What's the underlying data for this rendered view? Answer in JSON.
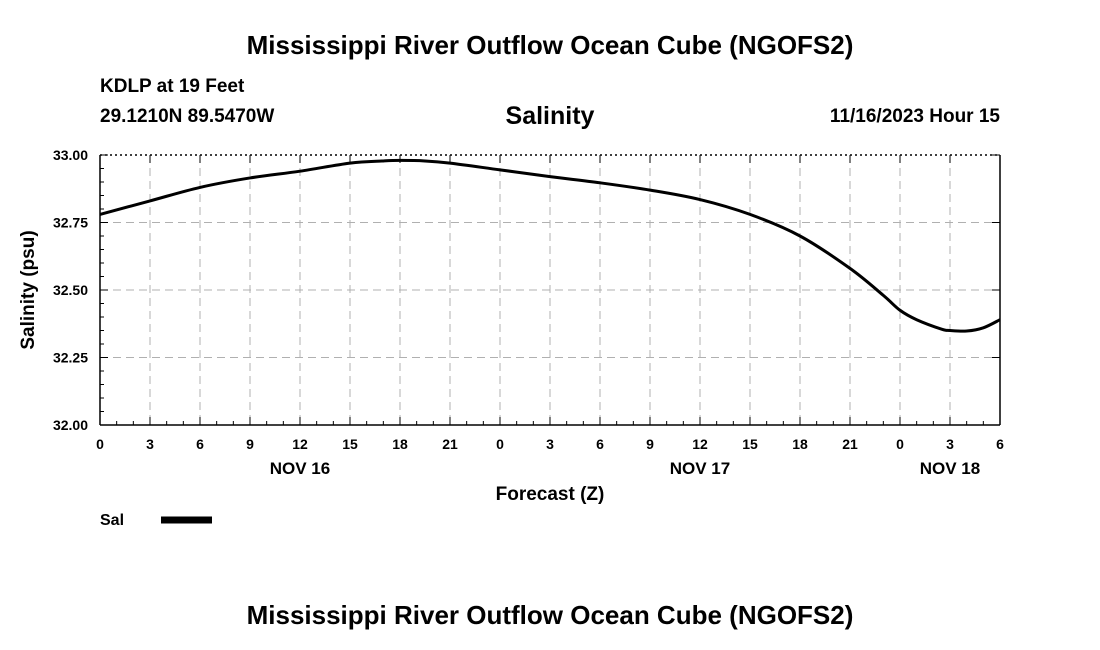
{
  "header": {
    "main_title": "Mississippi River Outflow Ocean Cube (NGOFS2)",
    "station": "KDLP at 19 Feet",
    "coords": "29.1210N  89.5470W",
    "chart_title": "Salinity",
    "datetime": "11/16/2023 Hour 15"
  },
  "footer": {
    "main_title": "Mississippi River Outflow Ocean Cube (NGOFS2)"
  },
  "chart_data": {
    "type": "line",
    "title": "Salinity",
    "xlabel": "Forecast (Z)",
    "ylabel": "Salinity (psu)",
    "x_unit": "forecast hours from Nov 16 00Z",
    "xlim": [
      0,
      54
    ],
    "ylim": [
      32.0,
      33.0
    ],
    "grid": true,
    "y_ticks": [
      "32.00",
      "32.25",
      "32.50",
      "32.75",
      "33.00"
    ],
    "y_tick_values": [
      32.0,
      32.25,
      32.5,
      32.75,
      33.0
    ],
    "x_ticks": [
      {
        "hour": 0,
        "label": "0"
      },
      {
        "hour": 3,
        "label": "3"
      },
      {
        "hour": 6,
        "label": "6"
      },
      {
        "hour": 9,
        "label": "9"
      },
      {
        "hour": 12,
        "label": "12"
      },
      {
        "hour": 15,
        "label": "15"
      },
      {
        "hour": 18,
        "label": "18"
      },
      {
        "hour": 21,
        "label": "21"
      },
      {
        "hour": 24,
        "label": "0"
      },
      {
        "hour": 27,
        "label": "3"
      },
      {
        "hour": 30,
        "label": "6"
      },
      {
        "hour": 33,
        "label": "9"
      },
      {
        "hour": 36,
        "label": "12"
      },
      {
        "hour": 39,
        "label": "15"
      },
      {
        "hour": 42,
        "label": "18"
      },
      {
        "hour": 45,
        "label": "21"
      },
      {
        "hour": 48,
        "label": "0"
      },
      {
        "hour": 51,
        "label": "3"
      },
      {
        "hour": 54,
        "label": "6"
      }
    ],
    "date_labels": [
      {
        "hour": 12,
        "label": "NOV 16"
      },
      {
        "hour": 36,
        "label": "NOV 17"
      },
      {
        "hour": 51,
        "label": "NOV 18"
      }
    ],
    "series": [
      {
        "name": "Sal",
        "color": "#000000",
        "x": [
          0,
          3,
          6,
          9,
          12,
          15,
          17,
          18,
          19.5,
          21,
          24,
          27,
          30,
          33,
          36,
          39,
          42,
          45,
          47,
          48,
          49,
          50.5,
          51,
          52,
          53,
          54
        ],
        "values": [
          32.78,
          32.83,
          32.88,
          32.915,
          32.94,
          32.97,
          32.978,
          32.98,
          32.978,
          32.97,
          32.945,
          32.92,
          32.897,
          32.87,
          32.835,
          32.78,
          32.7,
          32.58,
          32.48,
          32.425,
          32.39,
          32.355,
          32.35,
          32.348,
          32.36,
          32.39
        ]
      }
    ],
    "legend": [
      {
        "label": "Sal",
        "color": "#000000"
      }
    ],
    "legend_position": "bottom-left"
  }
}
